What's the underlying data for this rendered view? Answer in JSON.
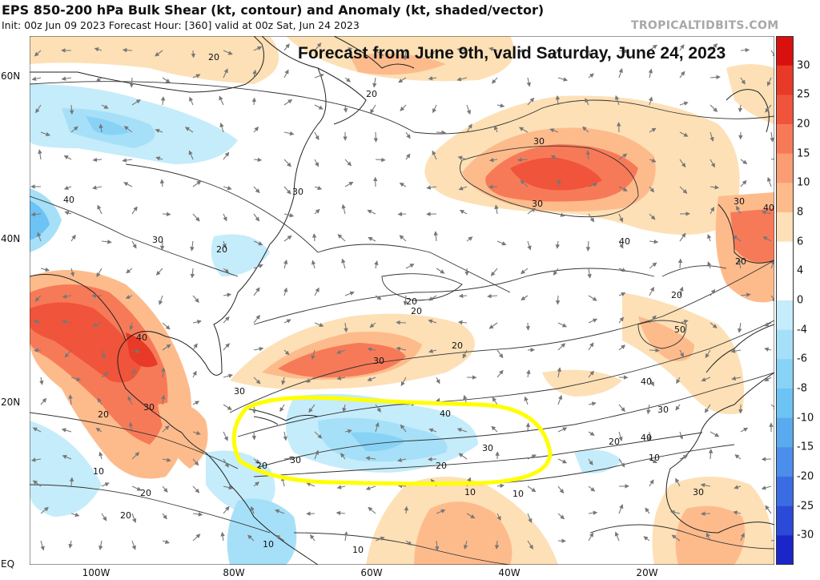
{
  "header": {
    "title": "EPS 850-200 hPa Bulk Shear (kt, contour) and Anomaly (kt, shaded/vector)",
    "subtitle": "Init: 00z Jun 09 2023   Forecast Hour: [360]   valid at 00z Sat, Jun 24 2023",
    "brand": "TROPICALTIDBITS.COM"
  },
  "annotation": {
    "caption": "Forecast from June 9th, valid Saturday, June 24, 2023",
    "highlight_color": "#ffff00"
  },
  "axes": {
    "lat_labels": [
      "60N",
      "40N",
      "20N",
      "EQ"
    ],
    "lon_labels": [
      "100W",
      "80W",
      "60W",
      "40W",
      "20W"
    ]
  },
  "contours": {
    "labels": [
      "20",
      "20",
      "30",
      "30",
      "40",
      "30",
      "20",
      "30",
      "20",
      "20",
      "20",
      "40",
      "30",
      "30",
      "30",
      "20",
      "40",
      "30",
      "10",
      "10",
      "20",
      "20",
      "40",
      "30",
      "20",
      "20",
      "30",
      "40",
      "30",
      "10",
      "10",
      "10",
      "20",
      "10",
      "20",
      "50",
      "40",
      "40",
      "30",
      "20"
    ]
  },
  "colorbar": {
    "ticks": [
      "30",
      "25",
      "20",
      "15",
      "10",
      "8",
      "6",
      "4",
      "0",
      "-4",
      "-6",
      "-8",
      "-10",
      "-15",
      "-20",
      "-25",
      "-30"
    ],
    "colors": [
      "#d8110f",
      "#e83a26",
      "#f0543a",
      "#f77a58",
      "#fb9c72",
      "#fdbb8c",
      "#fde0b6",
      "#ffffff",
      "#ffffff",
      "#c5ecfa",
      "#a6e0f8",
      "#88d2f6",
      "#6cc3f4",
      "#5aaaf0",
      "#4b8eeb",
      "#3a6de3",
      "#2c4ad8",
      "#1b26c9"
    ]
  }
}
